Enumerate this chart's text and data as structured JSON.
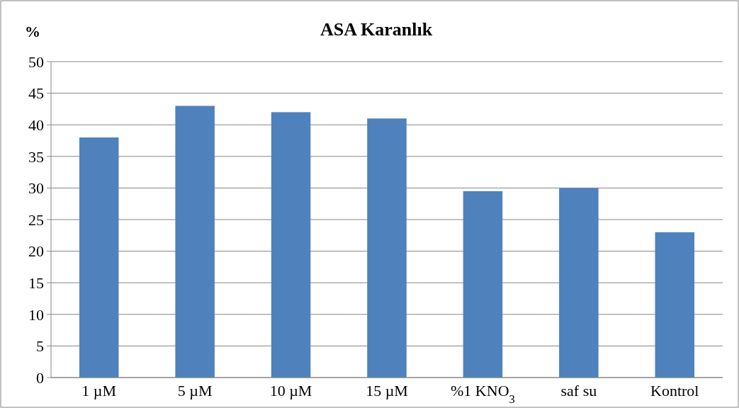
{
  "chart_data": {
    "type": "bar",
    "title": "ASA Karanlık",
    "ylabel": "%",
    "categories": [
      "1 µM",
      "5 µM",
      "10 µM",
      "15 µM",
      "%1 KNO$_{3}$",
      "saf su",
      "Kontrol"
    ],
    "values": [
      38,
      43,
      42,
      41,
      29.5,
      30,
      23
    ],
    "color": "#4f81bd",
    "ylim": [
      0,
      50
    ],
    "yticks": [
      0,
      5,
      10,
      15,
      20,
      25,
      30,
      35,
      40,
      45,
      50
    ],
    "grid": "y"
  }
}
